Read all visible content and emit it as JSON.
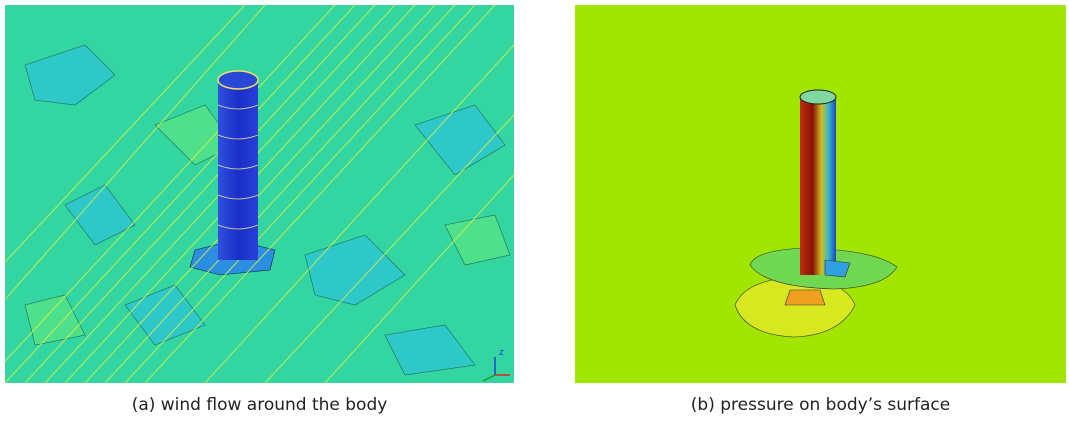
{
  "figure": {
    "panels": [
      {
        "caption": "(a) wind flow around the body",
        "axis_label": "z"
      },
      {
        "caption": "(b) pressure on body’s surface"
      }
    ]
  }
}
